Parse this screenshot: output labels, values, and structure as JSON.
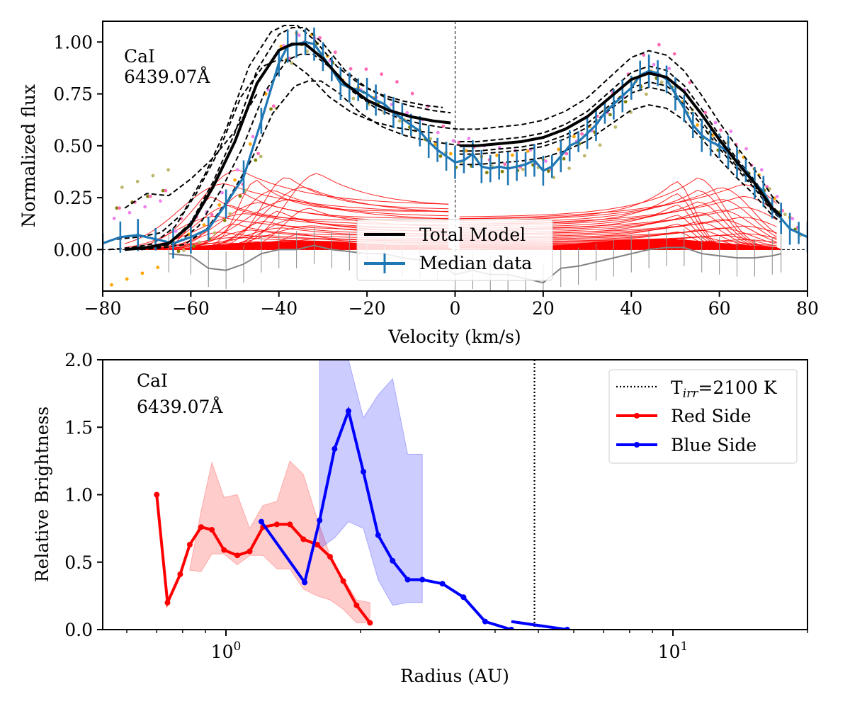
{
  "chart_data": [
    {
      "type": "line",
      "panel": "top",
      "annotation": [
        "CaI",
        "6439.07Å"
      ],
      "xlabel": "Velocity (km/s)",
      "ylabel": "Normalized flux",
      "xlim": [
        -80,
        80
      ],
      "ylim": [
        -0.2,
        1.1
      ],
      "xticks": [
        -80,
        -60,
        -40,
        -20,
        0,
        20,
        40,
        60,
        80
      ],
      "xtick_labels": [
        "−80",
        "−60",
        "−40",
        "−20",
        "0",
        "20",
        "40",
        "60",
        "80"
      ],
      "yticks": [
        0.0,
        0.25,
        0.5,
        0.75,
        1.0
      ],
      "ytick_labels": [
        "0.00",
        "0.25",
        "0.50",
        "0.75",
        "1.00"
      ],
      "legend": [
        "Total Model",
        "Median data"
      ],
      "total_model_blue": {
        "x": [
          -75,
          -70,
          -65,
          -60,
          -55,
          -50,
          -45,
          -40,
          -37,
          -34,
          -30,
          -25,
          -20,
          -15,
          -10,
          -5,
          -1
        ],
        "y": [
          0.0,
          0.01,
          0.03,
          0.12,
          0.3,
          0.52,
          0.8,
          0.96,
          0.99,
          0.99,
          0.92,
          0.8,
          0.72,
          0.67,
          0.64,
          0.62,
          0.61
        ]
      },
      "total_model_red": {
        "x": [
          1,
          5,
          10,
          15,
          20,
          25,
          30,
          35,
          40,
          44,
          48,
          52,
          56,
          60,
          64,
          68,
          72,
          74
        ],
        "y": [
          0.5,
          0.5,
          0.51,
          0.52,
          0.54,
          0.58,
          0.64,
          0.73,
          0.82,
          0.85,
          0.83,
          0.76,
          0.65,
          0.53,
          0.42,
          0.32,
          0.2,
          0.16
        ]
      },
      "median_data": {
        "x": [
          -80,
          -76,
          -72,
          -68,
          -64,
          -60,
          -56,
          -52,
          -48,
          -44,
          -40,
          -38,
          -36,
          -34,
          -32,
          -30,
          -28,
          -26,
          -24,
          -22,
          -20,
          -18,
          -16,
          -14,
          -12,
          -10,
          -8,
          -6,
          -4,
          -2,
          0,
          2,
          4,
          6,
          8,
          10,
          12,
          14,
          16,
          18,
          20,
          22,
          24,
          26,
          28,
          30,
          32,
          34,
          36,
          38,
          40,
          42,
          44,
          46,
          48,
          50,
          52,
          54,
          56,
          58,
          60,
          62,
          64,
          66,
          68,
          70,
          72,
          74,
          76,
          78,
          80
        ],
        "y": [
          0.03,
          0.06,
          0.07,
          0.05,
          0.03,
          0.06,
          0.1,
          0.22,
          0.35,
          0.62,
          0.9,
          0.98,
          0.99,
          1.0,
          0.99,
          0.93,
          0.87,
          0.8,
          0.78,
          0.77,
          0.75,
          0.72,
          0.7,
          0.66,
          0.63,
          0.6,
          0.57,
          0.52,
          0.48,
          0.45,
          0.42,
          0.43,
          0.46,
          0.4,
          0.39,
          0.4,
          0.39,
          0.4,
          0.41,
          0.43,
          0.38,
          0.4,
          0.45,
          0.5,
          0.52,
          0.56,
          0.6,
          0.66,
          0.7,
          0.74,
          0.78,
          0.84,
          0.86,
          0.85,
          0.82,
          0.75,
          0.68,
          0.6,
          0.55,
          0.52,
          0.5,
          0.47,
          0.42,
          0.38,
          0.32,
          0.28,
          0.2,
          0.15,
          0.1,
          0.08,
          0.06
        ]
      },
      "residual": {
        "x": [
          -65,
          -60,
          -56,
          -52,
          -48,
          -44,
          -40,
          -36,
          -32,
          -28,
          -24,
          -20,
          -16,
          -12,
          -8,
          -4,
          0,
          4,
          8,
          12,
          16,
          20,
          24,
          28,
          32,
          36,
          40,
          44,
          48,
          52,
          56,
          60,
          64,
          68,
          72,
          74
        ],
        "y": [
          -0.02,
          -0.03,
          -0.09,
          -0.1,
          -0.07,
          -0.02,
          0.0,
          0.0,
          0.02,
          0.0,
          -0.01,
          -0.02,
          -0.02,
          -0.04,
          -0.05,
          -0.06,
          -0.12,
          -0.1,
          -0.12,
          -0.12,
          -0.14,
          -0.16,
          -0.09,
          -0.08,
          -0.06,
          -0.04,
          -0.02,
          0.0,
          0.01,
          0.01,
          -0.02,
          -0.03,
          -0.04,
          -0.04,
          -0.03,
          -0.02
        ]
      }
    },
    {
      "type": "line",
      "panel": "bottom",
      "annotation": [
        "CaI",
        "6439.07Å"
      ],
      "xlabel": "Radius (AU)",
      "ylabel": "Relative Brightness",
      "xscale": "log",
      "xlim": [
        0.53,
        20
      ],
      "ylim": [
        0.0,
        2.0
      ],
      "xticks_major": [
        1,
        10
      ],
      "yticks": [
        0.0,
        0.5,
        1.0,
        1.5,
        2.0
      ],
      "ytick_labels": [
        "0.0",
        "0.5",
        "1.0",
        "1.5",
        "2.0"
      ],
      "vline": {
        "x": 4.9,
        "label_main": "T",
        "label_sub": "irr",
        "label_rest": "=2100 K"
      },
      "legend": [
        "Red Side",
        "Blue Side"
      ],
      "legend_position": "top-right",
      "series": [
        {
          "name": "Red Side",
          "color": "#ff0000",
          "x": [
            0.7,
            0.74,
            0.79,
            0.83,
            0.88,
            0.93,
            0.99,
            1.06,
            1.13,
            1.21,
            1.3,
            1.39,
            1.49,
            1.6,
            1.71,
            1.83,
            1.96,
            2.1,
            2.25,
            2.41
          ],
          "y": [
            1.0,
            0.2,
            0.41,
            0.63,
            0.76,
            0.74,
            0.59,
            0.55,
            0.58,
            0.76,
            0.78,
            0.78,
            0.67,
            0.63,
            0.54,
            0.36,
            0.18,
            0.05,
            null,
            null
          ]
        },
        {
          "name": "Blue Side",
          "color": "#0000ff",
          "x": [
            1.2,
            1.5,
            1.62,
            1.75,
            1.88,
            2.03,
            2.19,
            2.36,
            2.55,
            2.75,
            3.05,
            3.4,
            3.8,
            4.35,
            5.8
          ],
          "y": [
            0.8,
            0.35,
            0.81,
            1.34,
            1.62,
            1.17,
            0.7,
            0.51,
            0.37,
            0.37,
            0.34,
            0.24,
            0.06,
            0.0,
            null
          ]
        }
      ],
      "bands": [
        {
          "name": "Red Side band",
          "color": "#ff0000",
          "x": [
            0.83,
            0.88,
            0.93,
            0.99,
            1.06,
            1.13,
            1.21,
            1.3,
            1.39,
            1.49,
            1.6,
            1.71,
            1.83,
            1.96,
            2.1
          ],
          "upper": [
            0.45,
            0.88,
            1.24,
            0.98,
            1.0,
            0.75,
            0.92,
            0.95,
            1.25,
            1.15,
            0.82,
            0.55,
            0.38,
            0.22,
            0.2
          ],
          "lower": [
            0.44,
            0.43,
            0.56,
            0.56,
            0.48,
            0.55,
            0.55,
            0.45,
            0.45,
            0.3,
            0.25,
            0.22,
            0.15,
            0.05,
            0.05
          ]
        },
        {
          "name": "Blue Side band",
          "color": "#0000ff",
          "x": [
            1.62,
            1.75,
            1.88,
            2.03,
            2.19,
            2.36,
            2.55,
            2.75
          ],
          "upper": [
            2.0,
            2.0,
            2.0,
            1.57,
            1.74,
            1.86,
            1.3,
            1.3
          ],
          "lower": [
            0.6,
            0.68,
            0.8,
            0.75,
            0.37,
            0.18,
            0.2,
            0.2
          ]
        }
      ]
    }
  ]
}
